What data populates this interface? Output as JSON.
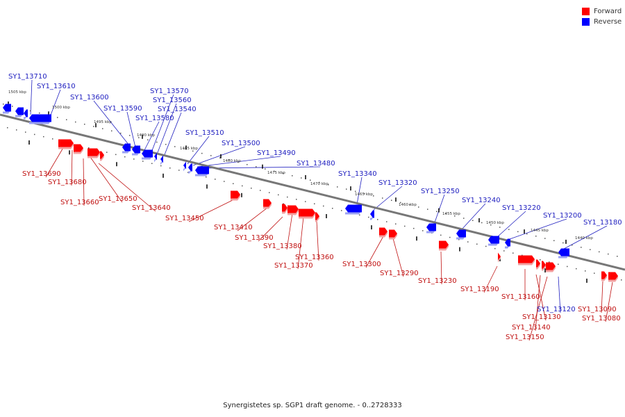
{
  "caption": "Synergistetes sp. SGP1 draft genome. - 0..2728333",
  "legend": {
    "forward_label": "Forward",
    "reverse_label": "Reverse",
    "forward_color": "#ff0000",
    "reverse_color": "#0000ff"
  },
  "ticks": [
    "1505 kbp",
    "1500 kbp",
    "1495 kbp",
    "1490 kbp",
    "1485 kbp",
    "1480 kbp",
    "1475 kbp",
    "1470 kbp",
    "1465 kbp",
    "1460 kbp",
    "1455 kbp",
    "1450 kbp",
    "1445 kbp",
    "1440 kbp"
  ],
  "reverse_genes": [
    "SY1_13710",
    "SY1_13610",
    "SY1_13600",
    "SY1_13590",
    "SY1_13580",
    "SY1_13570",
    "SY1_13560",
    "SY1_13540",
    "SY1_13510",
    "SY1_13500",
    "SY1_13490",
    "SY1_13480",
    "SY1_13340",
    "SY1_13320",
    "SY1_13250",
    "SY1_13240",
    "SY1_13220",
    "SY1_13200",
    "SY1_13180",
    "SY1_13120"
  ],
  "forward_genes": [
    "SY1_13690",
    "SY1_13680",
    "SY1_13660",
    "SY1_13650",
    "SY1_13640",
    "SY1_13450",
    "SY1_13410",
    "SY1_13390",
    "SY1_13380",
    "SY1_13370",
    "SY1_13360",
    "SY1_13300",
    "SY1_13290",
    "SY1_13230",
    "SY1_13190",
    "SY1_13160",
    "SY1_13130",
    "SY1_13140",
    "SY1_13150",
    "SY1_13090",
    "SY1_13080"
  ]
}
